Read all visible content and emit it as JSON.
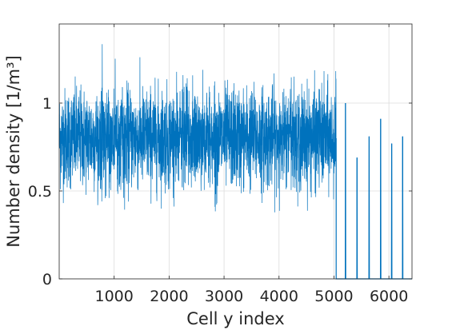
{
  "chart_data": {
    "type": "line",
    "title": "",
    "xlabel": "Cell y index",
    "ylabel": "Number density [1/m³]",
    "xlim": [
      0,
      6420
    ],
    "ylim": [
      0,
      1.45
    ],
    "grid": true,
    "series_color": "#0072BD",
    "x_ticks": [
      {
        "value": 1000,
        "label": "1000"
      },
      {
        "value": 2000,
        "label": "2000"
      },
      {
        "value": 3000,
        "label": "3000"
      },
      {
        "value": 4000,
        "label": "4000"
      },
      {
        "value": 5000,
        "label": "5000"
      },
      {
        "value": 6000,
        "label": "6000"
      }
    ],
    "y_ticks": [
      {
        "value": 0,
        "label": "0"
      },
      {
        "value": 0.5,
        "label": "0.5"
      },
      {
        "value": 1,
        "label": "1"
      }
    ],
    "series": [
      {
        "dense_noise_segment": {
          "x_start": 1,
          "x_end": 5040,
          "mean": 0.8,
          "typical_band": [
            0.6,
            1.05
          ],
          "min_observed": 0.37,
          "max_observed": 1.39
        },
        "sparse_segment": {
          "x_start": 5040,
          "x_end": 6420,
          "baseline": 0,
          "spikes": [
            {
              "x": 5210,
              "y": 1.0
            },
            {
              "x": 5420,
              "y": 0.69
            },
            {
              "x": 5640,
              "y": 0.81
            },
            {
              "x": 5850,
              "y": 0.91
            },
            {
              "x": 6050,
              "y": 0.77
            },
            {
              "x": 6250,
              "y": 0.81
            }
          ]
        }
      }
    ]
  }
}
